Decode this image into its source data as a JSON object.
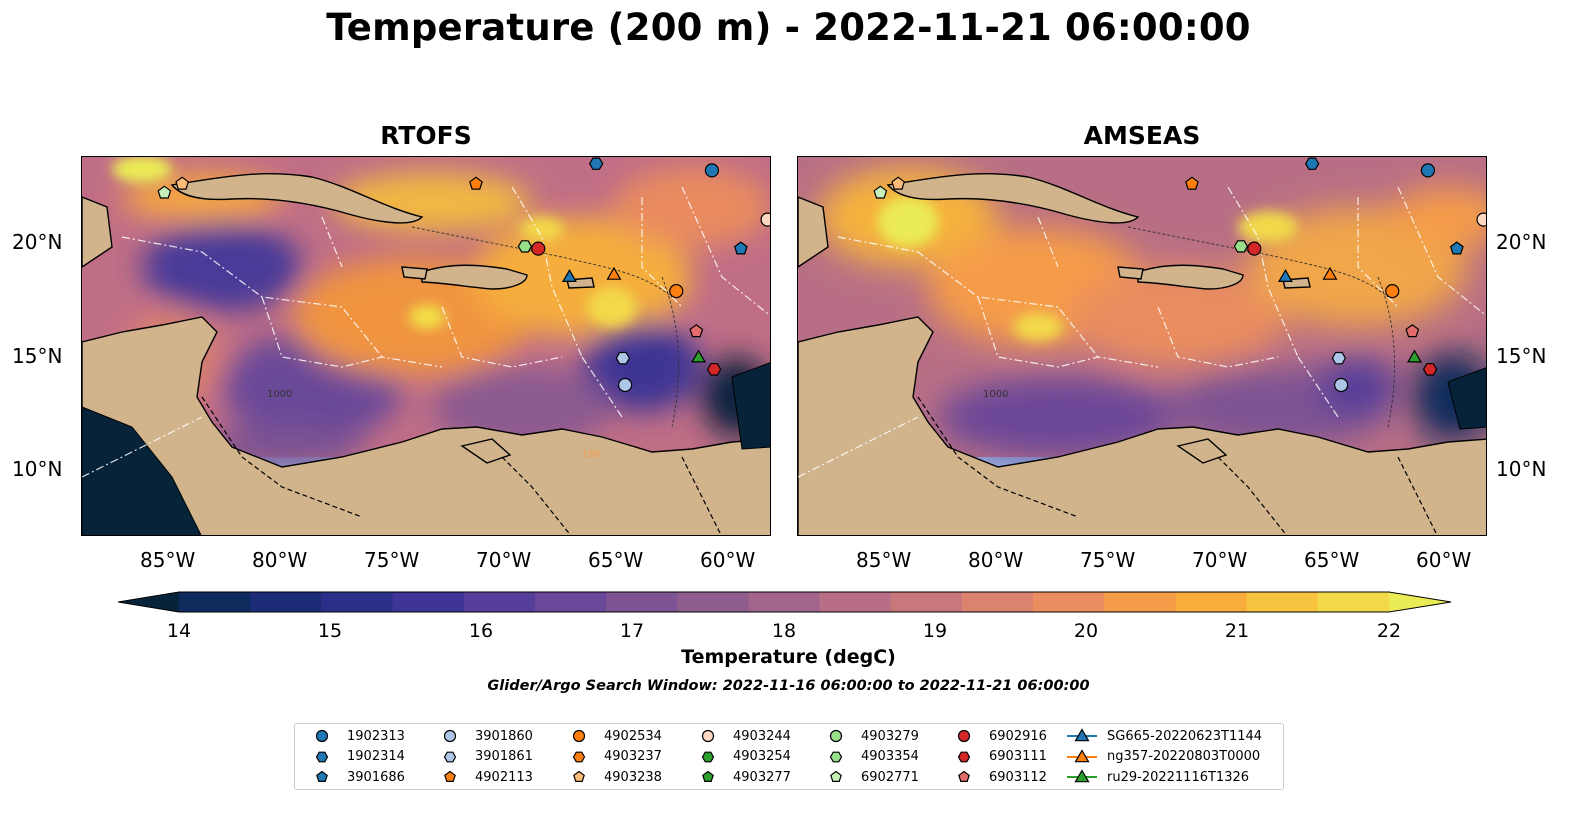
{
  "title": "Temperature (200 m) - 2022-11-21 06:00:00",
  "panels": [
    {
      "title": "RTOFS"
    },
    {
      "title": "AMSEAS"
    }
  ],
  "axes": {
    "lon_ticks": [
      "85°W",
      "80°W",
      "75°W",
      "70°W",
      "65°W",
      "60°W"
    ],
    "lat_ticks": [
      "20°N",
      "15°N",
      "10°N"
    ],
    "lon_range": [
      -89,
      -58
    ],
    "lat_range": [
      7,
      24
    ]
  },
  "colorbar": {
    "label": "Temperature (degC)",
    "ticks": [
      "14",
      "15",
      "16",
      "17",
      "18",
      "19",
      "20",
      "21",
      "22"
    ],
    "range": [
      14,
      22
    ],
    "extend": "both",
    "colors": [
      "#06233a",
      "#0f2a5c",
      "#1d2c77",
      "#2c2f8a",
      "#3f3596",
      "#553d9a",
      "#6a4798",
      "#7d5393",
      "#8f5c8e",
      "#a2648b",
      "#b86f85",
      "#c8777b",
      "#dc8370",
      "#ea8d5f",
      "#f59c48",
      "#f8ad3d",
      "#f8c440",
      "#f2d948",
      "#ebec55"
    ]
  },
  "subtitle": "Glider/Argo Search Window: 2022-11-16 06:00:00 to 2022-11-21 06:00:00",
  "legend": [
    {
      "label": "1902313",
      "marker": "circle",
      "color": "#1f77b4"
    },
    {
      "label": "1902314",
      "marker": "hexagon",
      "color": "#1f77b4"
    },
    {
      "label": "3901686",
      "marker": "pentagon",
      "color": "#1f77b4"
    },
    {
      "label": "3901860",
      "marker": "circle",
      "color": "#aec7e8"
    },
    {
      "label": "3901861",
      "marker": "hexagon",
      "color": "#aec7e8"
    },
    {
      "label": "4902113",
      "marker": "pentagon",
      "color": "#ff7f0e"
    },
    {
      "label": "4902534",
      "marker": "circle",
      "color": "#ff7f0e"
    },
    {
      "label": "4903237",
      "marker": "hexagon",
      "color": "#ff7f0e"
    },
    {
      "label": "4903238",
      "marker": "pentagon",
      "color": "#ffbb78"
    },
    {
      "label": "4903244",
      "marker": "circle",
      "color": "#ffd9bf"
    },
    {
      "label": "4903254",
      "marker": "hexagon",
      "color": "#2ca02c"
    },
    {
      "label": "4903277",
      "marker": "pentagon",
      "color": "#2ca02c"
    },
    {
      "label": "4903279",
      "marker": "circle",
      "color": "#98df8a"
    },
    {
      "label": "4903354",
      "marker": "hexagon",
      "color": "#98df8a"
    },
    {
      "label": "6902771",
      "marker": "pentagon",
      "color": "#c7f0b8"
    },
    {
      "label": "6902916",
      "marker": "circle",
      "color": "#d62728"
    },
    {
      "label": "6903111",
      "marker": "hexagon",
      "color": "#d62728"
    },
    {
      "label": "6903112",
      "marker": "pentagon",
      "color": "#e36b6b"
    },
    {
      "label": "SG665-20220623T1144",
      "marker": "triangle-line",
      "color": "#1f77b4"
    },
    {
      "label": "ng357-20220803T0000",
      "marker": "triangle-line",
      "color": "#ff7f0e"
    },
    {
      "label": "ru29-20221116T1326",
      "marker": "triangle-line",
      "color": "#2ca02c"
    }
  ],
  "markers": [
    {
      "id": "1902313",
      "marker": "circle",
      "color": "#1f77b4",
      "lon": -60.7,
      "lat": 23.4
    },
    {
      "id": "1902314",
      "marker": "hexagon",
      "color": "#1f77b4",
      "lon": -65.9,
      "lat": 23.7
    },
    {
      "id": "3901686",
      "marker": "pentagon",
      "color": "#1f77b4",
      "lon": -59.4,
      "lat": 19.9
    },
    {
      "id": "3901860",
      "marker": "circle",
      "color": "#aec7e8",
      "lon": -64.6,
      "lat": 13.8
    },
    {
      "id": "3901861",
      "marker": "hexagon",
      "color": "#aec7e8",
      "lon": -64.7,
      "lat": 15.0
    },
    {
      "id": "4902113",
      "marker": "pentagon",
      "color": "#ff7f0e",
      "lon": -71.3,
      "lat": 22.8
    },
    {
      "id": "4902534",
      "marker": "circle",
      "color": "#ff7f0e",
      "lon": -62.3,
      "lat": 18.0
    },
    {
      "id": "4903238",
      "marker": "pentagon",
      "color": "#ffbb78",
      "lon": -84.5,
      "lat": 22.8
    },
    {
      "id": "4903244",
      "marker": "circle",
      "color": "#ffd9bf",
      "lon": -58.2,
      "lat": 21.2
    },
    {
      "id": "6902771",
      "marker": "pentagon",
      "color": "#c7f0b8",
      "lon": -85.3,
      "lat": 22.4
    },
    {
      "id": "4903354",
      "marker": "hexagon",
      "color": "#98df8a",
      "lon": -69.1,
      "lat": 20.0
    },
    {
      "id": "6902916",
      "marker": "circle",
      "color": "#d62728",
      "lon": -68.5,
      "lat": 19.9
    },
    {
      "id": "6903111",
      "marker": "hexagon",
      "color": "#d62728",
      "lon": -60.6,
      "lat": 14.5
    },
    {
      "id": "6903112",
      "marker": "pentagon",
      "color": "#e36b6b",
      "lon": -61.4,
      "lat": 16.2
    },
    {
      "id": "SG665-20220623T1144",
      "marker": "triangle",
      "color": "#1f77b4",
      "lon": -67.1,
      "lat": 18.6
    },
    {
      "id": "ng357-20220803T0000",
      "marker": "triangle",
      "color": "#ff7f0e",
      "lon": -65.1,
      "lat": 18.7
    },
    {
      "id": "ru29-20221116T1326",
      "marker": "triangle",
      "color": "#2ca02c",
      "lon": -61.3,
      "lat": 15.0
    }
  ],
  "contour_labels": [
    "100",
    "1000"
  ]
}
